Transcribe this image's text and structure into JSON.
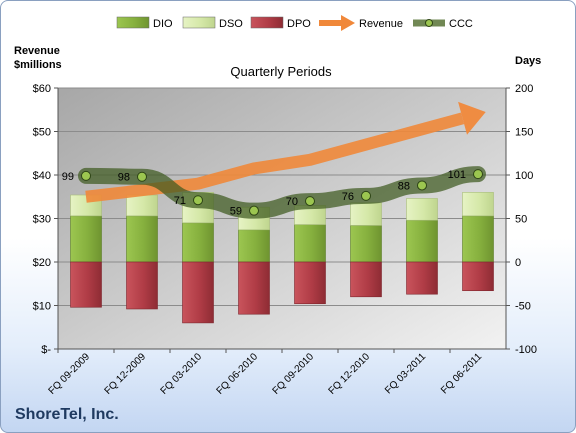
{
  "company": "ShoreTel, Inc.",
  "chart_data": {
    "type": "bar",
    "title": "Quarterly Periods",
    "left_axis_label": "Revenue\n$millions",
    "right_axis_label": "Days",
    "categories": [
      "FQ 09-2009",
      "FQ 12-2009",
      "FQ 03-2010",
      "FQ 06-2010",
      "FQ 09-2010",
      "FQ 12-2010",
      "FQ 03-2011",
      "FQ 06-2011"
    ],
    "left_ticks": [
      "$-",
      "$10",
      "$20",
      "$30",
      "$40",
      "$50",
      "$60"
    ],
    "left_ylim": [
      0,
      60
    ],
    "right_ylim": [
      -100,
      200
    ],
    "right_ticks": [
      -100,
      -50,
      0,
      50,
      100,
      150,
      200
    ],
    "grid": true,
    "legend_position": "top",
    "legend": [
      {
        "name": "DIO",
        "kind": "bar",
        "color": "#8db646"
      },
      {
        "name": "DSO",
        "kind": "bar",
        "color": "#d9ebb0"
      },
      {
        "name": "DPO",
        "kind": "bar",
        "color": "#b8404a"
      },
      {
        "name": "Revenue",
        "kind": "arrow",
        "color": "#f0883a"
      },
      {
        "name": "CCC",
        "kind": "line",
        "color": "#4e6b2a"
      }
    ],
    "series": [
      {
        "name": "DIO",
        "axis": "right",
        "values": [
          53,
          53,
          45,
          37,
          43,
          42,
          48,
          53
        ]
      },
      {
        "name": "DSO",
        "axis": "right",
        "values": [
          24,
          24,
          35,
          26,
          22,
          26,
          25,
          27
        ]
      },
      {
        "name": "DPO",
        "axis": "right",
        "values": [
          -52,
          -54,
          -70,
          -60,
          -48,
          -40,
          -37,
          -33
        ]
      },
      {
        "name": "Revenue",
        "axis": "left",
        "values": [
          35,
          36.5,
          38,
          41.5,
          43.5,
          47,
          50.5,
          54
        ]
      },
      {
        "name": "CCC",
        "axis": "right",
        "values": [
          99,
          98,
          71,
          59,
          70,
          76,
          88,
          101
        ],
        "labels": [
          "99",
          "98",
          "71",
          "59",
          "70",
          "76",
          "88",
          "101"
        ]
      }
    ]
  }
}
